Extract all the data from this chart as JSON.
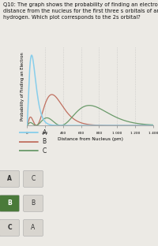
{
  "title_text": "Q10: The graph shows the probability of finding an electron at a\ndistance from the nucleus for the first three s orbitals of an atom of\nhydrogen. Which plot corresponds to the 2s orbital?",
  "xlabel": "Distance from Nucleus (pm)",
  "ylabel": "Probability of Finding an Electron",
  "xmax": 1400,
  "color_A": "#87CEEB",
  "color_B": "#C07060",
  "color_C": "#6A9A6A",
  "a0": 52.9,
  "legend_items": [
    [
      "A",
      "#87CEEB"
    ],
    [
      "B",
      "#C07060"
    ],
    [
      "C",
      "#6A9A6A"
    ]
  ],
  "answer_options": [
    [
      "A",
      "C"
    ],
    [
      "B",
      "B"
    ],
    [
      "C",
      "A"
    ]
  ],
  "selected_answer": 1,
  "bg_color": "#eceae5",
  "answer_bg_selected": "#4a7a3a",
  "answer_bg_normal": "#d8d5cf",
  "scale_1s": 1.0,
  "scale_2s": 0.44,
  "scale_3s": 0.285
}
